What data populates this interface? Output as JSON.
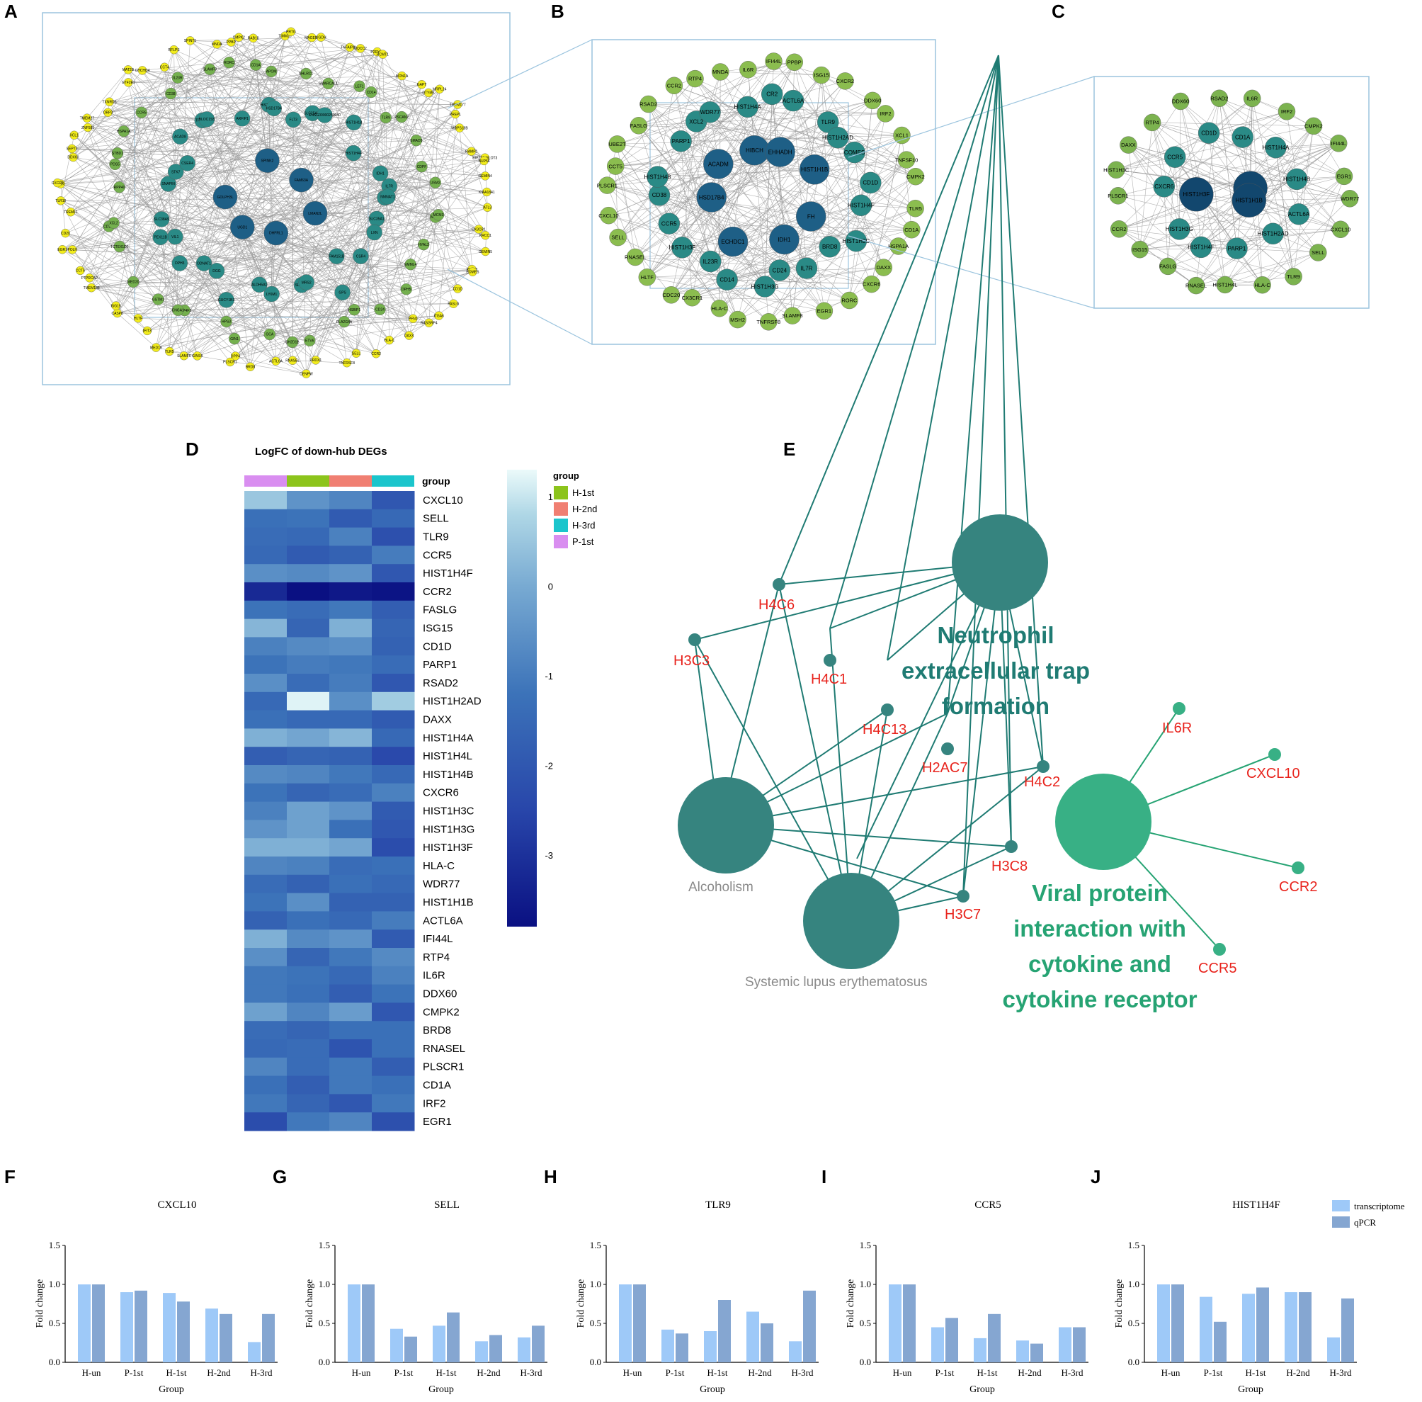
{
  "panels": {
    "a": "A",
    "b": "B",
    "c": "C",
    "d": "D",
    "e": "E",
    "f": "F",
    "g": "G",
    "h": "H",
    "i": "I",
    "j": "J"
  },
  "networks": {
    "a_genes": [
      "LMAN2L",
      "DHFRL1",
      "UGD1",
      "GOLPH3L",
      "SPINK2",
      "FAM63A",
      "GBA",
      "SLC35A1",
      "LXN",
      "CSR4",
      "FAM151B",
      "GPS",
      "SLC3A2",
      "MRS2",
      "LY6M1",
      "ALDH5A1",
      "GUCY1B3",
      "DGG",
      "ODNAT1",
      "DPH3",
      "VIL1",
      "PEX11B",
      "SLC38A9",
      "SNAPIN",
      "STK7",
      "CSER4",
      "ACAD8",
      "TRMT1L",
      "BLOC1S5",
      "ARFIP1",
      "HIST1H3C",
      "HSD17B4",
      "FLT3",
      "SLC25A20",
      "ENSG00000259040",
      "HIST1H1B",
      "HIST1H4F",
      "IDH1",
      "IL7R",
      "NMNAT1",
      "MYCL",
      "HYAL2",
      "EMML4",
      "DPH5",
      "CD24",
      "HSBIP1",
      "PLA2G4A",
      "ETV6",
      "SH2D1B",
      "GCA",
      "GIN1",
      "HPS3",
      "CYP4F1",
      "CNGA1",
      "GSTM1",
      "MED20",
      "TCTEX1D2",
      "CD160",
      "XCL2",
      "RPP40",
      "PDS5",
      "STBD1",
      "HSPA1A",
      "CCR5",
      "CD38",
      "IL23R",
      "SLAMF8",
      "RORC",
      "CD1A",
      "APOM",
      "NHLRC1",
      "SMARCAL1",
      "LEF1",
      "CD14",
      "TLR9",
      "ZSCAN7",
      "SMAD5",
      "CDPF",
      "USM2",
      "MCM3",
      "ATL3",
      "CX3CR1",
      "KRCC1",
      "GEMIN5",
      "PHF13",
      "EOMES",
      "CD1D",
      "FASLG",
      "ITGA6",
      "RASGRP4",
      "PFN1",
      "DAXX",
      "HLA-C",
      "CCR2",
      "SELL",
      "TNFRSF8",
      "PRDX1",
      "CENPW",
      "RNASEL",
      "ACTL6A",
      "BRD8",
      "DPP4",
      "PLSCR1",
      "GINS4",
      "SLAMF6",
      "TLR5",
      "MED19",
      "IFIT3",
      "HLTF",
      "CASP8",
      "ISG15",
      "TMEM138",
      "PTPRCAP",
      "CCT5",
      "POLH",
      "EGR1",
      "CD20",
      "TREML1",
      "TLR10",
      "IL6R",
      "CXCR2",
      "DDX60",
      "SEPT7",
      "XCL1",
      "ZNF581",
      "TMEM27",
      "ORP3",
      "TXNRD3",
      "GTF2E1",
      "MAT2B",
      "CHCHD4",
      "CCT4",
      "RFLPS",
      "SPINT1",
      "MNDA",
      "PPBP",
      "CMPK2",
      "RAB10",
      "TIMM29",
      "PRTG",
      "MAGEF1",
      "UGDH",
      "TNFAIP8L2",
      "UQCC2",
      "P2RY13",
      "PCMT1",
      "MON1A",
      "GAPT",
      "DTYMK",
      "MRPL24",
      "TMEM177",
      "PREPL",
      "MRPS18B",
      "RAMP1",
      "RIP210-MLOT3",
      "NUP54",
      "GEMIN4",
      "KIAA1841"
    ],
    "b_genes": [
      "FH",
      "IDH1",
      "ECHDC1",
      "HSD17B4",
      "ACADM",
      "HIBCH",
      "EHHADH",
      "HIST1H1B",
      "HIST1H4F",
      "HIST1H3C",
      "BRD8",
      "IL7R",
      "CD24",
      "HIST1H3G",
      "CD14",
      "IL23R",
      "HIST1H3F",
      "CCR5",
      "CD38",
      "HIST1H4B",
      "PARP1",
      "XCL2",
      "WDR77",
      "HIST1H4A",
      "CR2",
      "ACTL6A",
      "TLR9",
      "HIST1H2AD",
      "COMES",
      "CD1D",
      "TLR5",
      "CD1A",
      "HSPA1A",
      "DAXX",
      "CXCR6",
      "RORC",
      "EGR1",
      "SLAMF8",
      "TNFRSF8",
      "MSH2",
      "HLA-C",
      "CX3CR1",
      "CDC20",
      "HLTF",
      "RNASEL",
      "SELL",
      "CXCL10",
      "PLSCR1",
      "CCT5",
      "UBE2T",
      "FASLG",
      "RSAD2",
      "CCR2",
      "RTP4",
      "MNDA",
      "IL6R",
      "IFI44L",
      "PPBP",
      "ISG15",
      "CXCR2",
      "DDX60",
      "IRF2",
      "XCL1",
      "TNFSF10",
      "CMPK2"
    ],
    "c_genes": [
      "HIST1H3F",
      "BRD8",
      "HIST1H1B",
      "ACTL6A",
      "HIST1H2AD",
      "PARP1",
      "HIST1H4F",
      "HIST1H3G",
      "CXCR6",
      "CCR5",
      "CD1D",
      "CD1A",
      "HIST1H4A",
      "HIST1H4B",
      "WDR77",
      "CXCL10",
      "SELL",
      "TLR9",
      "HLA-C",
      "HIST1H4L",
      "RNASEL",
      "FASLG",
      "ISG15",
      "CCR2",
      "PLSCR1",
      "HIST1H3C",
      "DAXX",
      "RTP4",
      "DDX60",
      "RSAD2",
      "IL6R",
      "IRF2",
      "CMPK2",
      "IFI44L",
      "EGR1"
    ]
  },
  "heatmap": {
    "title": "LogFC of down-hub DEGs",
    "group_label": "group",
    "legend_title": "group",
    "columns": [
      "P-1st",
      "H-1st",
      "H-2nd",
      "H-3rd"
    ],
    "group_colors": {
      "H-1st": "#8cc41c",
      "H-2nd": "#f07f72",
      "H-3rd": "#1bc5cc",
      "P-1st": "#d98ef0"
    },
    "legend_groups": [
      "H-1st",
      "H-2nd",
      "H-3rd",
      "P-1st"
    ],
    "colorbar_ticks": [
      "1",
      "0",
      "-1",
      "-2",
      "-3"
    ],
    "colorbar_range": [
      -3.8,
      1.3
    ],
    "rows": [
      "CXCL10",
      "SELL",
      "TLR9",
      "CCR5",
      "HIST1H4F",
      "CCR2",
      "FASLG",
      "ISG15",
      "CD1D",
      "PARP1",
      "RSAD2",
      "HIST1H2AD",
      "DAXX",
      "HIST1H4A",
      "HIST1H4L",
      "HIST1H4B",
      "CXCR6",
      "HIST1H3C",
      "HIST1H3G",
      "HIST1H3F",
      "HLA-C",
      "WDR77",
      "HIST1H1B",
      "ACTL6A",
      "IFI44L",
      "RTP4",
      "IL6R",
      "DDX60",
      "CMPK2",
      "BRD8",
      "RNASEL",
      "PLSCR1",
      "CD1A",
      "IRF2",
      "EGR1"
    ],
    "values": [
      [
        0.5,
        -0.5,
        -0.8,
        -2.0
      ],
      [
        -1.3,
        -1.2,
        -1.9,
        -1.5
      ],
      [
        -1.4,
        -1.5,
        -0.9,
        -2.2
      ],
      [
        -1.5,
        -1.9,
        -1.7,
        -1.0
      ],
      [
        -0.6,
        -0.7,
        -0.5,
        -2.0
      ],
      [
        -3.2,
        -3.8,
        -3.6,
        -3.7
      ],
      [
        -1.2,
        -1.4,
        -1.1,
        -1.8
      ],
      [
        0.2,
        -1.6,
        0.1,
        -1.6
      ],
      [
        -0.9,
        -0.7,
        -0.6,
        -1.7
      ],
      [
        -1.2,
        -1.0,
        -1.1,
        -1.4
      ],
      [
        -0.6,
        -1.4,
        -1.0,
        -2.0
      ],
      [
        -1.5,
        1.2,
        -0.6,
        0.6
      ],
      [
        -1.3,
        -1.5,
        -1.5,
        -1.9
      ],
      [
        0.1,
        -0.1,
        0.2,
        -1.5
      ],
      [
        -1.8,
        -1.6,
        -1.7,
        -2.4
      ],
      [
        -0.7,
        -0.8,
        -1.1,
        -1.5
      ],
      [
        -1.2,
        -1.6,
        -1.4,
        -0.9
      ],
      [
        -0.9,
        -0.2,
        -0.5,
        -1.9
      ],
      [
        -0.5,
        -0.2,
        -1.3,
        -2.0
      ],
      [
        0.1,
        0.1,
        -0.1,
        -2.3
      ],
      [
        -0.8,
        -0.9,
        -1.4,
        -1.3
      ],
      [
        -1.4,
        -1.7,
        -1.3,
        -1.5
      ],
      [
        -1.2,
        -0.6,
        -1.7,
        -1.7
      ],
      [
        -1.7,
        -1.3,
        -1.5,
        -1.0
      ],
      [
        0.1,
        -0.7,
        -0.5,
        -1.9
      ],
      [
        -0.6,
        -1.6,
        -1.1,
        -0.7
      ],
      [
        -1.1,
        -1.2,
        -1.5,
        -0.9
      ],
      [
        -1.1,
        -1.3,
        -1.8,
        -1.2
      ],
      [
        -0.2,
        -0.8,
        -0.3,
        -2.0
      ],
      [
        -1.4,
        -1.6,
        -1.3,
        -1.3
      ],
      [
        -1.5,
        -1.4,
        -2.1,
        -1.3
      ],
      [
        -0.8,
        -1.4,
        -1.1,
        -1.8
      ],
      [
        -1.3,
        -1.8,
        -1.1,
        -1.3
      ],
      [
        -1.1,
        -1.6,
        -2.0,
        -1.1
      ],
      [
        -2.3,
        -1.1,
        -0.8,
        -2.2
      ]
    ]
  },
  "enrichment": {
    "terms": [
      {
        "name_lines": [
          "Neutrophil",
          "extracellular trap",
          "formation"
        ],
        "color": "#1f7b73"
      },
      {
        "name_lines": [
          "Alcoholism"
        ],
        "color": "#8a8a8a"
      },
      {
        "name_lines": [
          "Systemic lupus erythematosus"
        ],
        "color": "#8a8a8a"
      },
      {
        "name_lines": [
          "Viral protein",
          "interaction with",
          "cytokine and",
          "cytokine receptor"
        ],
        "color": "#26a373"
      }
    ],
    "genes": [
      "H4C6",
      "H3C3",
      "H4C1",
      "H4C13",
      "H2AC7",
      "H4C2",
      "H3C8",
      "H3C7",
      "IL6R",
      "CXCL10",
      "CCR2",
      "CCR5"
    ]
  },
  "chart_data": [
    {
      "type": "bar",
      "title": "CXCL10",
      "categories": [
        "H-un",
        "P-1st",
        "H-1st",
        "H-2nd",
        "H-3rd"
      ],
      "series": [
        {
          "name": "transcriptome",
          "values": [
            1.0,
            0.9,
            0.89,
            0.69,
            0.26
          ]
        },
        {
          "name": "qPCR",
          "values": [
            1.0,
            0.92,
            0.78,
            0.62,
            0.62
          ]
        }
      ],
      "xlabel": "Group",
      "ylabel": "Fold change",
      "ylim": [
        0,
        1.5
      ],
      "yticks": [
        "0.0",
        "0.5",
        "1.0",
        "1.5"
      ]
    },
    {
      "type": "bar",
      "title": "SELL",
      "categories": [
        "H-un",
        "P-1st",
        "H-1st",
        "H-2nd",
        "H-3rd"
      ],
      "series": [
        {
          "name": "transcriptome",
          "values": [
            1.0,
            0.43,
            0.47,
            0.27,
            0.32
          ]
        },
        {
          "name": "qPCR",
          "values": [
            1.0,
            0.33,
            0.64,
            0.35,
            0.47
          ]
        }
      ],
      "xlabel": "Group",
      "ylabel": "Fold change",
      "ylim": [
        0,
        1.5
      ],
      "yticks": [
        "0.0",
        "0.5",
        "1.0",
        "1.5"
      ]
    },
    {
      "type": "bar",
      "title": "TLR9",
      "categories": [
        "H-un",
        "P-1st",
        "H-1st",
        "H-2nd",
        "H-3rd"
      ],
      "series": [
        {
          "name": "transcriptome",
          "values": [
            1.0,
            0.42,
            0.4,
            0.65,
            0.27
          ]
        },
        {
          "name": "qPCR",
          "values": [
            1.0,
            0.37,
            0.8,
            0.5,
            0.92
          ]
        }
      ],
      "xlabel": "Group",
      "ylabel": "Fold change",
      "ylim": [
        0,
        1.5
      ],
      "yticks": [
        "0.0",
        "0.5",
        "1.0",
        "1.5"
      ]
    },
    {
      "type": "bar",
      "title": "CCR5",
      "categories": [
        "H-un",
        "P-1st",
        "H-1st",
        "H-2nd",
        "H-3rd"
      ],
      "series": [
        {
          "name": "transcriptome",
          "values": [
            1.0,
            0.45,
            0.31,
            0.28,
            0.45
          ]
        },
        {
          "name": "qPCR",
          "values": [
            1.0,
            0.57,
            0.62,
            0.24,
            0.45
          ]
        }
      ],
      "xlabel": "Group",
      "ylabel": "Fold change",
      "ylim": [
        0,
        1.5
      ],
      "yticks": [
        "0.0",
        "0.5",
        "1.0",
        "1.5"
      ]
    },
    {
      "type": "bar",
      "title": "HIST1H4F",
      "categories": [
        "H-un",
        "P-1st",
        "H-1st",
        "H-2nd",
        "H-3rd"
      ],
      "series": [
        {
          "name": "transcriptome",
          "values": [
            1.0,
            0.84,
            0.88,
            0.9,
            0.32
          ]
        },
        {
          "name": "qPCR",
          "values": [
            1.0,
            0.52,
            0.96,
            0.9,
            0.82
          ]
        }
      ],
      "xlabel": "Group",
      "ylabel": "Fold change",
      "ylim": [
        0,
        1.5
      ],
      "yticks": [
        "0.0",
        "0.5",
        "1.0",
        "1.5"
      ],
      "legend": [
        "transcriptome",
        "qPCR"
      ]
    }
  ],
  "colors": {
    "transcriptome": "#9ec9f8",
    "qpcr": "#85a6d1",
    "net_border": "#9bc4de",
    "yellow_node": "#f2ec1c",
    "teal_dark": "#1f7b73",
    "green_bright": "#26a373",
    "gene_red": "#e8231c"
  }
}
